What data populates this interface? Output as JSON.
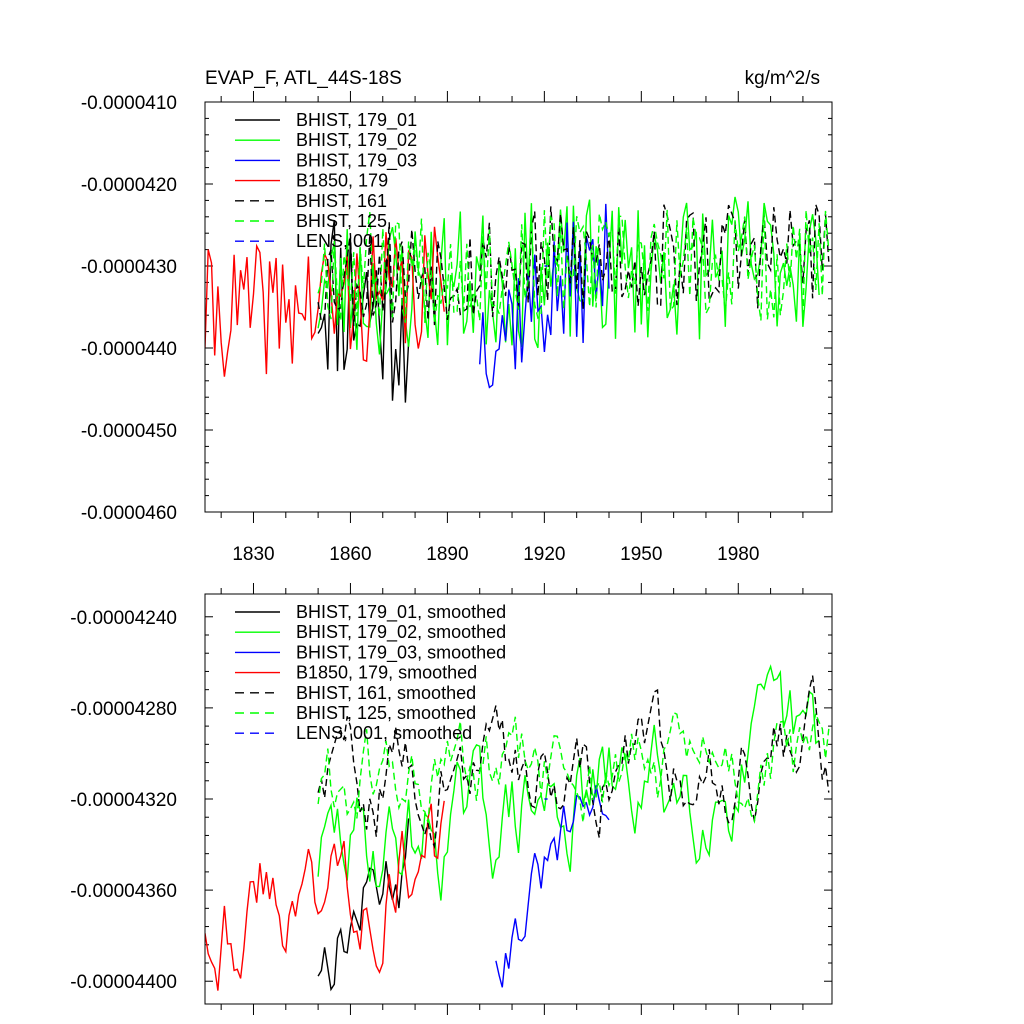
{
  "chart_data": [
    {
      "type": "line",
      "title": "EVAP_F, ATL_44S-18S",
      "units": "kg/m^2/s",
      "xlabel": "",
      "ylabel": "",
      "xlim": [
        1815,
        2009
      ],
      "ylim": [
        -4.6e-05,
        -4.1e-05
      ],
      "xticks": [
        1830,
        1860,
        1890,
        1920,
        1950,
        1980
      ],
      "xtick_labels": [
        "1830",
        "1860",
        "1890",
        "1920",
        "1950",
        "1980"
      ],
      "yticks": [
        -4.1e-05,
        -4.2e-05,
        -4.3e-05,
        -4.4e-05,
        -4.5e-05,
        -4.6e-05
      ],
      "ytick_labels": [
        "-0.0000410",
        "-0.0000420",
        "-0.0000430",
        "-0.0000440",
        "-0.0000450",
        "-0.0000460"
      ],
      "legend_position": "top-left",
      "series": [
        {
          "name": "BHIST, 179_01",
          "color": "#000000",
          "dash": "solid",
          "start": 1850,
          "end": 1878,
          "y0": -4.32e-05,
          "y1": -4.36e-05,
          "amp": 1.2e-06,
          "seed": 11
        },
        {
          "name": "BHIST, 179_02",
          "color": "#00ff00",
          "dash": "solid",
          "start": 1850,
          "end": 2005,
          "y0": -4.33e-05,
          "y1": -4.29e-05,
          "amp": 9e-07,
          "seed": 23
        },
        {
          "name": "BHIST, 179_03",
          "color": "#0000ff",
          "dash": "solid",
          "start": 1900,
          "end": 1940,
          "y0": -4.38e-05,
          "y1": -4.3e-05,
          "amp": 8e-07,
          "seed": 37
        },
        {
          "name": "B1850, 179",
          "color": "#ff0000",
          "dash": "solid",
          "start": 1815,
          "end": 1889,
          "y0": -4.36e-05,
          "y1": -4.33e-05,
          "amp": 8e-07,
          "seed": 41
        },
        {
          "name": "BHIST, 161",
          "color": "#000000",
          "dash": "dashed",
          "start": 1850,
          "end": 2008,
          "y0": -4.31e-05,
          "y1": -4.28e-05,
          "amp": 7e-07,
          "seed": 53
        },
        {
          "name": "BHIST, 125",
          "color": "#00ff00",
          "dash": "dashed",
          "start": 1850,
          "end": 2008,
          "y0": -4.3e-05,
          "y1": -4.3e-05,
          "amp": 7e-07,
          "seed": 67
        },
        {
          "name": "LENS, 001",
          "color": "#0000ff",
          "dash": "dashed",
          "start": 1920,
          "end": 1921,
          "y0": -4.3e-05,
          "y1": -4.3e-05,
          "amp": 0.0,
          "seed": 71
        }
      ]
    },
    {
      "type": "line",
      "title": "",
      "units": "",
      "xlabel": "",
      "ylabel": "",
      "xlim": [
        1815,
        2009
      ],
      "ylim": [
        -4.41e-05,
        -4.23e-05
      ],
      "xticks": [
        1830,
        1860,
        1890,
        1920,
        1950,
        1980
      ],
      "xtick_labels": [],
      "yticks": [
        -4.24e-05,
        -4.28e-05,
        -4.32e-05,
        -4.36e-05,
        -4.4e-05
      ],
      "ytick_labels": [
        "-0.00004240",
        "-0.00004280",
        "-0.00004320",
        "-0.00004360",
        "-0.00004400"
      ],
      "legend_position": "top-left",
      "series": [
        {
          "name": "BHIST, 179_01, smoothed",
          "color": "#000000",
          "dash": "solid",
          "start": 1850,
          "end": 1878,
          "y0": -4.39e-05,
          "y1": -4.34e-05,
          "amp": 2.5e-07,
          "seed": 13
        },
        {
          "name": "BHIST, 179_02, smoothed",
          "color": "#00ff00",
          "dash": "solid",
          "start": 1850,
          "end": 2005,
          "y0": -4.345e-05,
          "y1": -4.3e-05,
          "amp": 3e-07,
          "seed": 29
        },
        {
          "name": "BHIST, 179_03, smoothed",
          "color": "#0000ff",
          "dash": "solid",
          "start": 1905,
          "end": 1940,
          "y0": -4.385e-05,
          "y1": -4.315e-05,
          "amp": 2e-07,
          "seed": 31
        },
        {
          "name": "B1850, 179, smoothed",
          "color": "#ff0000",
          "dash": "solid",
          "start": 1815,
          "end": 1889,
          "y0": -4.37e-05,
          "y1": -4.345e-05,
          "amp": 3e-07,
          "seed": 43
        },
        {
          "name": "BHIST, 161, smoothed",
          "color": "#000000",
          "dash": "dashed",
          "start": 1850,
          "end": 2008,
          "y0": -4.31e-05,
          "y1": -4.3e-05,
          "amp": 2.5e-07,
          "seed": 59
        },
        {
          "name": "BHIST, 125, smoothed",
          "color": "#00ff00",
          "dash": "dashed",
          "start": 1850,
          "end": 2008,
          "y0": -4.315e-05,
          "y1": -4.305e-05,
          "amp": 2.5e-07,
          "seed": 61
        },
        {
          "name": "LENS, 001, smoothed",
          "color": "#0000ff",
          "dash": "dashed",
          "start": 1920,
          "end": 1921,
          "y0": -4.32e-05,
          "y1": -4.32e-05,
          "amp": 0.0,
          "seed": 73
        }
      ]
    }
  ]
}
